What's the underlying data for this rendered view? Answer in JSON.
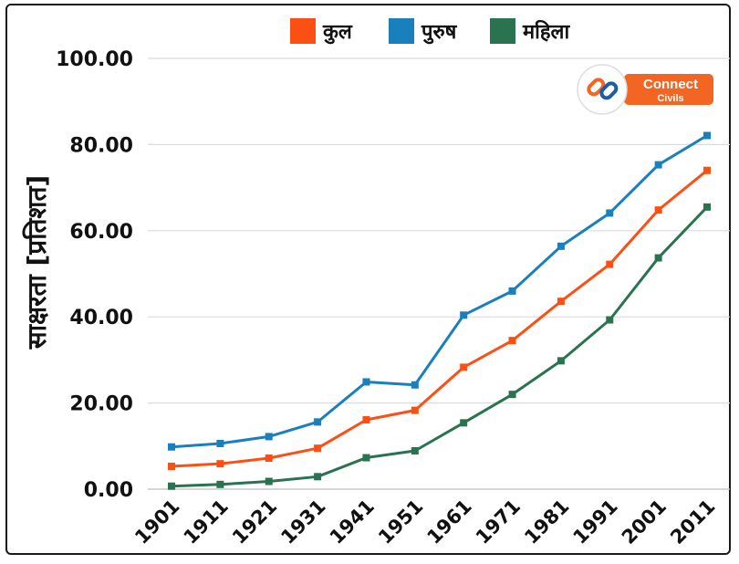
{
  "chart_data": {
    "type": "line",
    "title": "",
    "xlabel": "",
    "ylabel": "साक्षरता [प्रतिशत]",
    "x": [
      "1901",
      "1911",
      "1921",
      "1931",
      "1941",
      "1951",
      "1961",
      "1971",
      "1981",
      "1991",
      "2001",
      "2011"
    ],
    "ylim": [
      0,
      100
    ],
    "yticks": [
      "0.00",
      "20.00",
      "40.00",
      "60.00",
      "80.00",
      "100.00"
    ],
    "grid": "horizontal",
    "legend_position": "top-center",
    "series": [
      {
        "name": "कुल",
        "color": "#fc4f14",
        "values": [
          5.3,
          5.9,
          7.2,
          9.5,
          16.1,
          18.3,
          28.3,
          34.5,
          43.6,
          52.2,
          64.8,
          74.0
        ]
      },
      {
        "name": "पुरुष",
        "color": "#1a7fbd",
        "values": [
          9.8,
          10.6,
          12.2,
          15.6,
          24.9,
          24.2,
          40.4,
          46.0,
          56.4,
          64.1,
          75.3,
          82.1
        ]
      },
      {
        "name": "महिला",
        "color": "#2a7350",
        "values": [
          0.7,
          1.1,
          1.8,
          2.9,
          7.3,
          8.9,
          15.4,
          22.0,
          29.8,
          39.3,
          53.7,
          65.5
        ]
      }
    ]
  },
  "logo": {
    "line1": "Connect",
    "line2": "Civils",
    "icon": "chain-link-icon",
    "accent": "#f26522"
  }
}
